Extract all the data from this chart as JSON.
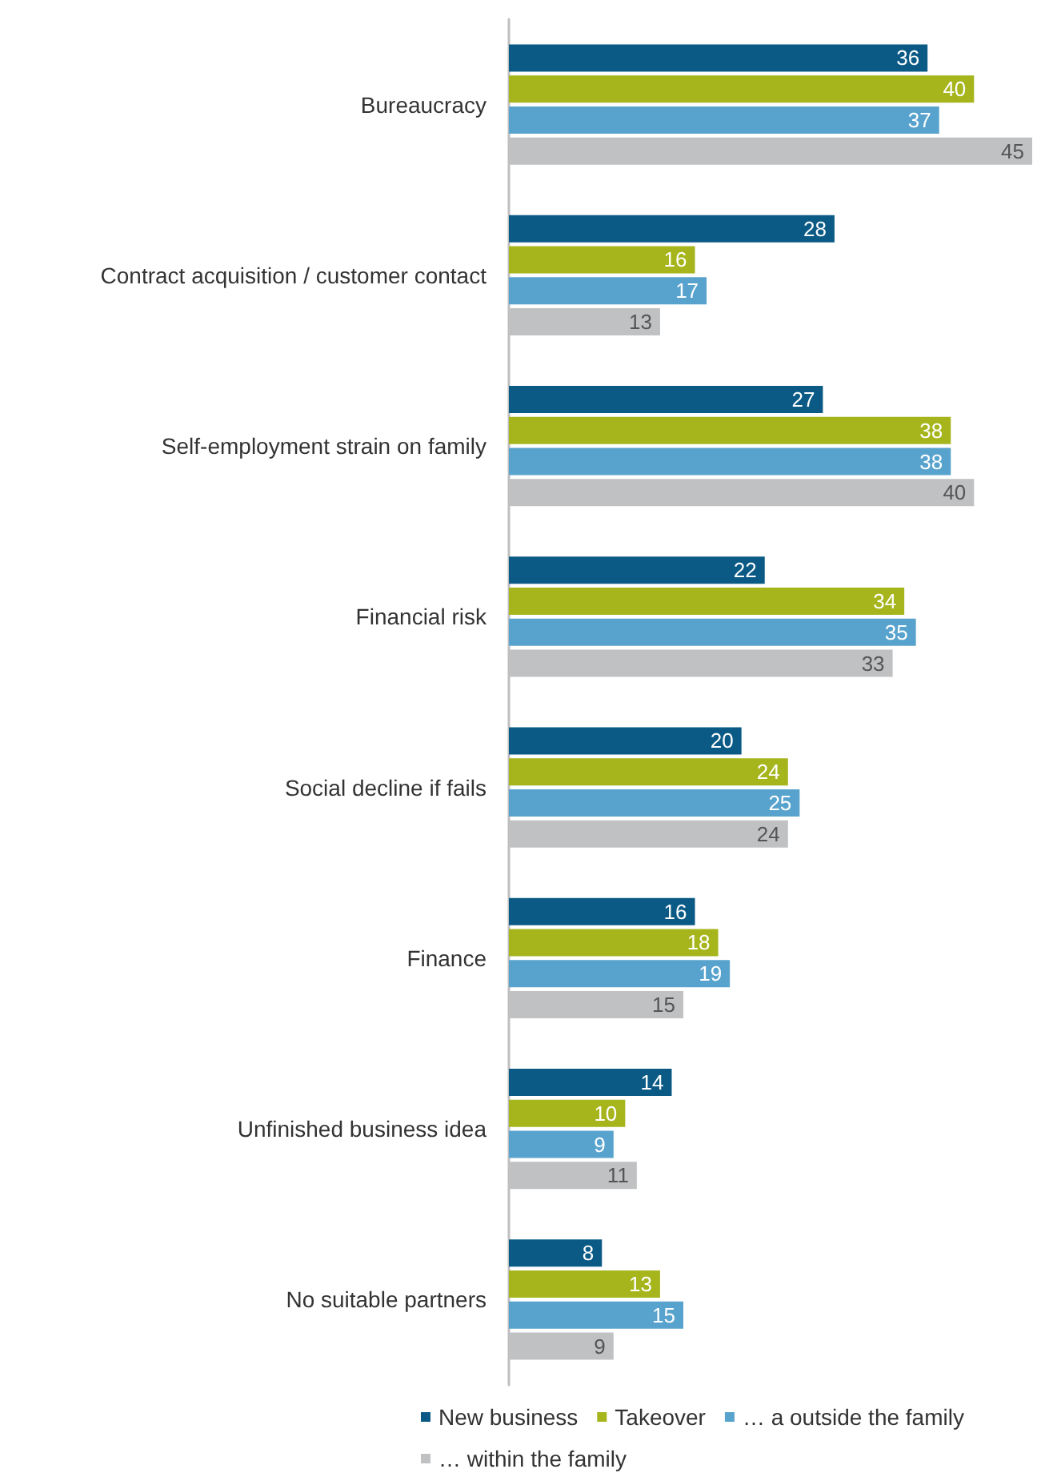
{
  "chart_data": {
    "type": "bar",
    "orientation": "horizontal",
    "data_labels": true,
    "legend": "bottom",
    "categories": [
      "Bureaucracy",
      "Contract acquisition / customer contact",
      "Self-employment strain on family",
      "Financial risk",
      "Social decline if fails",
      "Finance",
      "Unfinished business idea",
      "No suitable partners"
    ],
    "series": [
      {
        "name": "New business",
        "color": "#0b5a86",
        "values": [
          36,
          28,
          27,
          22,
          20,
          16,
          14,
          8
        ]
      },
      {
        "name": "Takeover",
        "color": "#a6b51c",
        "values": [
          40,
          16,
          38,
          34,
          24,
          18,
          10,
          13
        ]
      },
      {
        "name": "… a outside the family",
        "color": "#58a3cd",
        "values": [
          37,
          17,
          38,
          35,
          25,
          19,
          9,
          15
        ]
      },
      {
        "name": "… within the family",
        "color": "#bfc1c3",
        "values": [
          45,
          13,
          40,
          33,
          24,
          15,
          11,
          9
        ]
      }
    ]
  }
}
